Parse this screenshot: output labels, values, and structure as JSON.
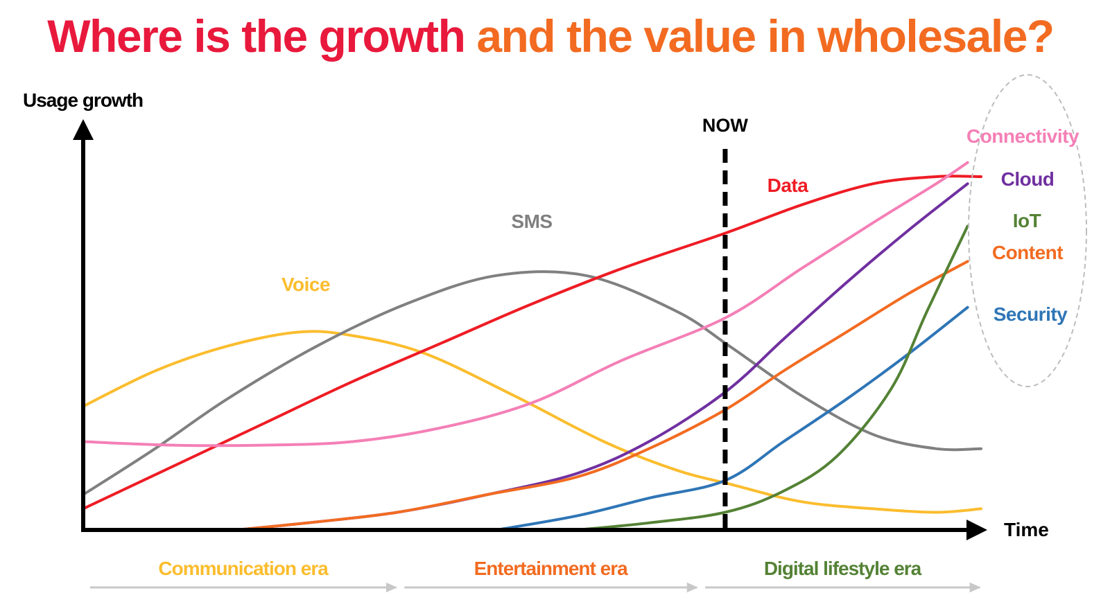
{
  "title": {
    "part1": "Where is the growth",
    "part2": "and the value in wholesale?",
    "color1": "#e8193c",
    "color2": "#f26b21"
  },
  "chart_data": {
    "type": "line",
    "title": "Where is the growth and the value in wholesale?",
    "ylabel": "Usage growth",
    "xlabel": "Time",
    "xlim": [
      0,
      100
    ],
    "ylim": [
      0,
      100
    ],
    "grid": false,
    "marker": {
      "label": "NOW",
      "x": 71.5
    },
    "eras": [
      {
        "label": "Communication era",
        "start": 0,
        "end": 35,
        "color": "#fbbd2e"
      },
      {
        "label": "Entertainment era",
        "start": 35,
        "end": 68.5,
        "color": "#f26b21"
      },
      {
        "label": "Digital lifestyle era",
        "start": 68.5,
        "end": 100,
        "color": "#548235"
      }
    ],
    "legend_group": "Connectivity, Cloud, IoT, Content, Security (circled, right)",
    "series": [
      {
        "name": "Voice",
        "color": "#fbbd2e",
        "x": [
          0,
          8,
          16,
          24,
          30,
          38,
          48,
          58,
          66,
          72,
          80,
          88,
          95,
          100
        ],
        "y": [
          35,
          45,
          52,
          56,
          55,
          50,
          38,
          25,
          17,
          13,
          8,
          6,
          5,
          6
        ]
      },
      {
        "name": "SMS",
        "color": "#808080",
        "x": [
          0,
          8,
          16,
          26,
          36,
          46,
          56,
          66,
          72,
          80,
          88,
          95,
          100
        ],
        "y": [
          10,
          23,
          37,
          52,
          64,
          72,
          72,
          62,
          52,
          38,
          27,
          23,
          23
        ]
      },
      {
        "name": "Data",
        "color": "#ee1c24",
        "x": [
          0,
          10,
          20,
          30,
          40,
          50,
          60,
          71.5,
          80,
          88,
          95,
          100
        ],
        "y": [
          6,
          18,
          30,
          42,
          53,
          64,
          74,
          84,
          92,
          98,
          100,
          100
        ]
      },
      {
        "name": "Connectivity",
        "color": "#f47fb6",
        "x": [
          0,
          10,
          20,
          30,
          40,
          50,
          60,
          71.5,
          80,
          88,
          95,
          98.5
        ],
        "y": [
          25,
          24,
          24,
          25,
          29,
          36,
          48,
          60,
          74,
          87,
          98,
          104
        ]
      },
      {
        "name": "Cloud",
        "color": "#7030a0",
        "x": [
          17,
          25,
          35,
          45,
          55,
          63,
          71.5,
          78,
          85,
          92,
          98.5
        ],
        "y": [
          0,
          2,
          5,
          10,
          16,
          25,
          39,
          54,
          70,
          85,
          98
        ]
      },
      {
        "name": "Content",
        "color": "#f26b21",
        "x": [
          17,
          25,
          35,
          45,
          55,
          63,
          71.5,
          78,
          85,
          92,
          98.5
        ],
        "y": [
          0,
          2,
          5,
          10,
          15,
          23,
          34,
          45,
          56,
          67,
          76
        ]
      },
      {
        "name": "Security",
        "color": "#2e75b6",
        "x": [
          46,
          55,
          63,
          71.5,
          78,
          85,
          92,
          98.5
        ],
        "y": [
          0,
          4,
          9,
          14,
          25,
          37,
          50,
          63
        ]
      },
      {
        "name": "IoT",
        "color": "#548235",
        "x": [
          55,
          63,
          71.5,
          78,
          84,
          90,
          94,
          98.5
        ],
        "y": [
          0,
          2,
          5,
          11,
          21,
          40,
          62,
          86
        ]
      }
    ]
  }
}
